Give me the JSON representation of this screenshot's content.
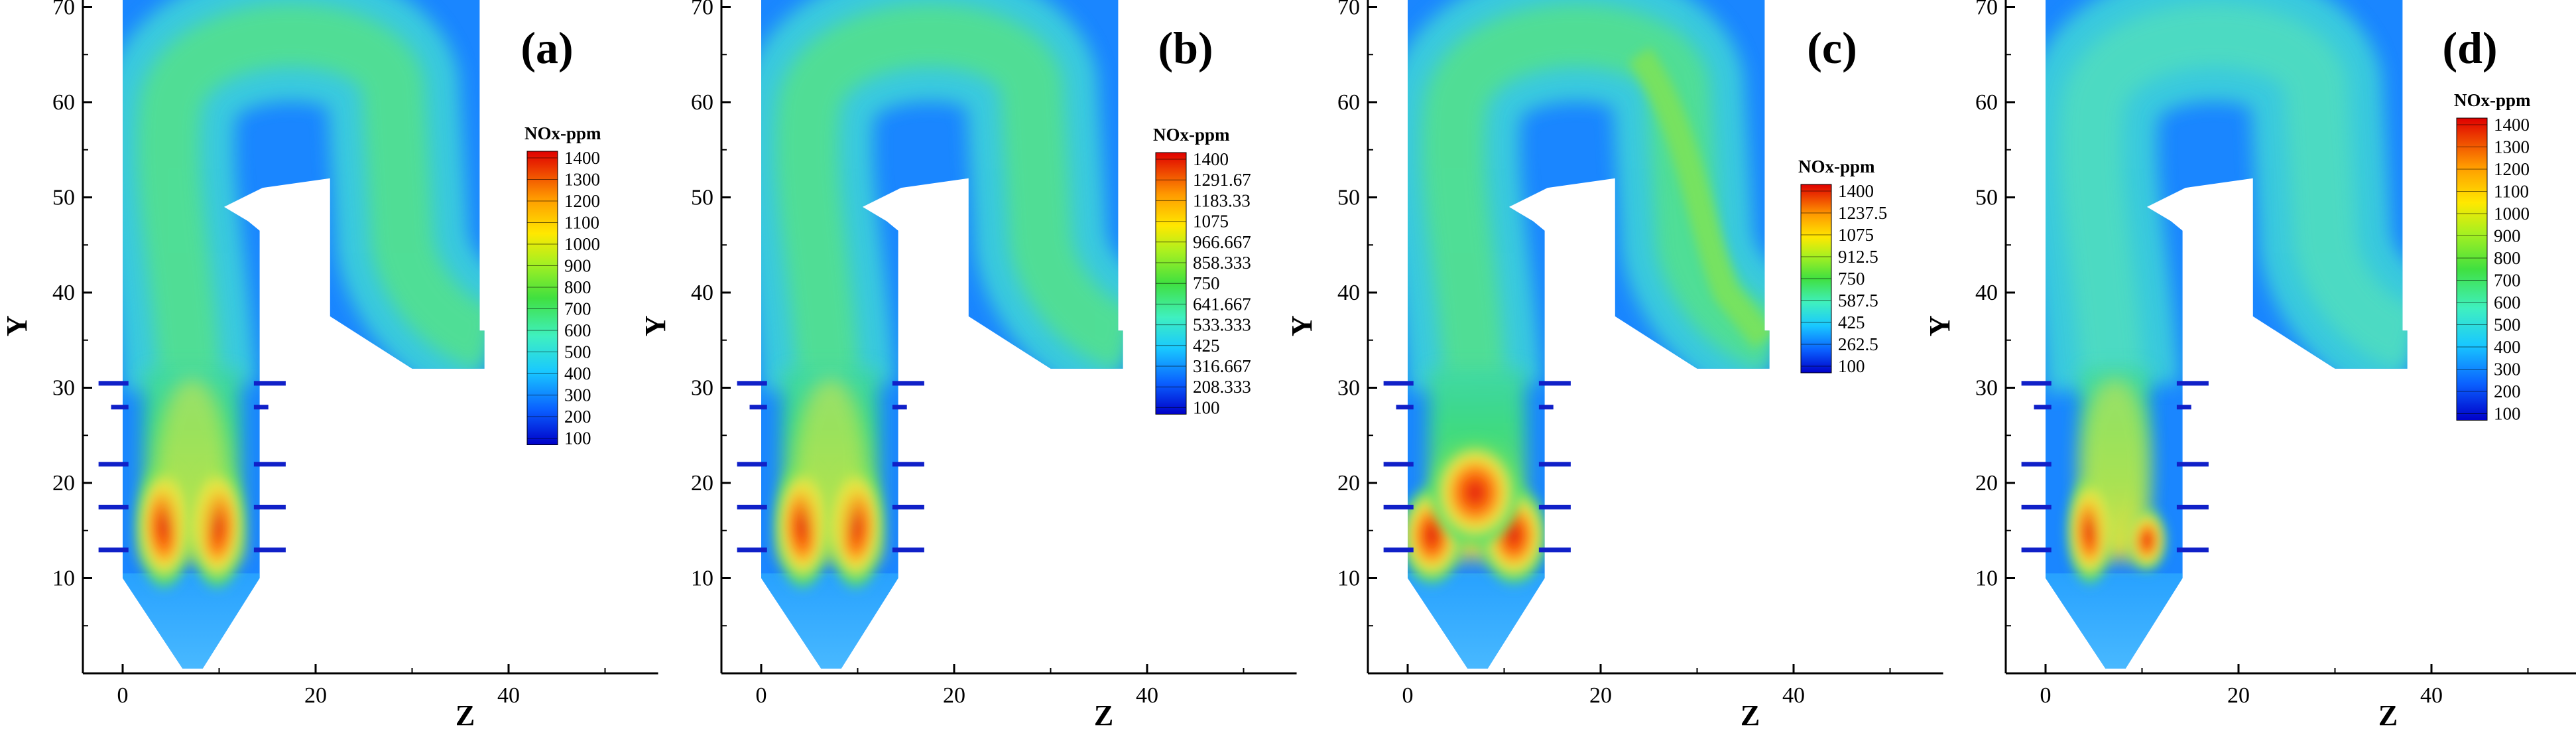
{
  "figure": {
    "panels": [
      {
        "label": "(a)",
        "legend_title": "NOx-ppm",
        "legend_levels": [
          "1400",
          "1300",
          "1200",
          "1100",
          "1000",
          "900",
          "800",
          "700",
          "600",
          "500",
          "400",
          "300",
          "200",
          "100"
        ],
        "y_axis_label": "Y",
        "x_axis_label": "Z",
        "y_ticks": [
          "10",
          "20",
          "30",
          "40",
          "50",
          "60",
          "70"
        ],
        "x_ticks": [
          "0",
          "20",
          "40"
        ],
        "plume": "twin"
      },
      {
        "label": "(b)",
        "legend_title": "NOx-ppm",
        "legend_levels": [
          "1400",
          "1291.67",
          "1183.33",
          "1075",
          "966.667",
          "858.333",
          "750",
          "641.667",
          "533.333",
          "425",
          "316.667",
          "208.333",
          "100"
        ],
        "y_axis_label": "Y",
        "x_axis_label": "Z",
        "y_ticks": [
          "10",
          "20",
          "30",
          "40",
          "50",
          "60",
          "70"
        ],
        "x_ticks": [
          "0",
          "20",
          "40"
        ],
        "plume": "twin"
      },
      {
        "label": "(c)",
        "legend_title": "NOx-ppm",
        "legend_levels": [
          "1400",
          "1237.5",
          "1075",
          "912.5",
          "750",
          "587.5",
          "425",
          "262.5",
          "100"
        ],
        "y_axis_label": "Y",
        "x_axis_label": "Z",
        "y_ticks": [
          "10",
          "20",
          "30",
          "40",
          "50",
          "60",
          "70"
        ],
        "x_ticks": [
          "0",
          "20",
          "40"
        ],
        "plume": "wide"
      },
      {
        "label": "(d)",
        "legend_title": "NOx-ppm",
        "legend_levels": [
          "1400",
          "1300",
          "1200",
          "1100",
          "1000",
          "900",
          "800",
          "700",
          "600",
          "500",
          "400",
          "300",
          "200",
          "100"
        ],
        "y_axis_label": "Y",
        "x_axis_label": "Z",
        "y_ticks": [
          "10",
          "20",
          "30",
          "40",
          "50",
          "60",
          "70"
        ],
        "x_ticks": [
          "0",
          "20",
          "40"
        ],
        "plume": "narrow"
      }
    ],
    "colors": {
      "background": "#0a80ff",
      "low": "#2f8cff",
      "mid": "#35e0d0",
      "green": "#47e06a",
      "yellow": "#f5e542",
      "orange": "#ff8a1a",
      "red": "#e8160c",
      "burner": "#1020c8"
    }
  }
}
